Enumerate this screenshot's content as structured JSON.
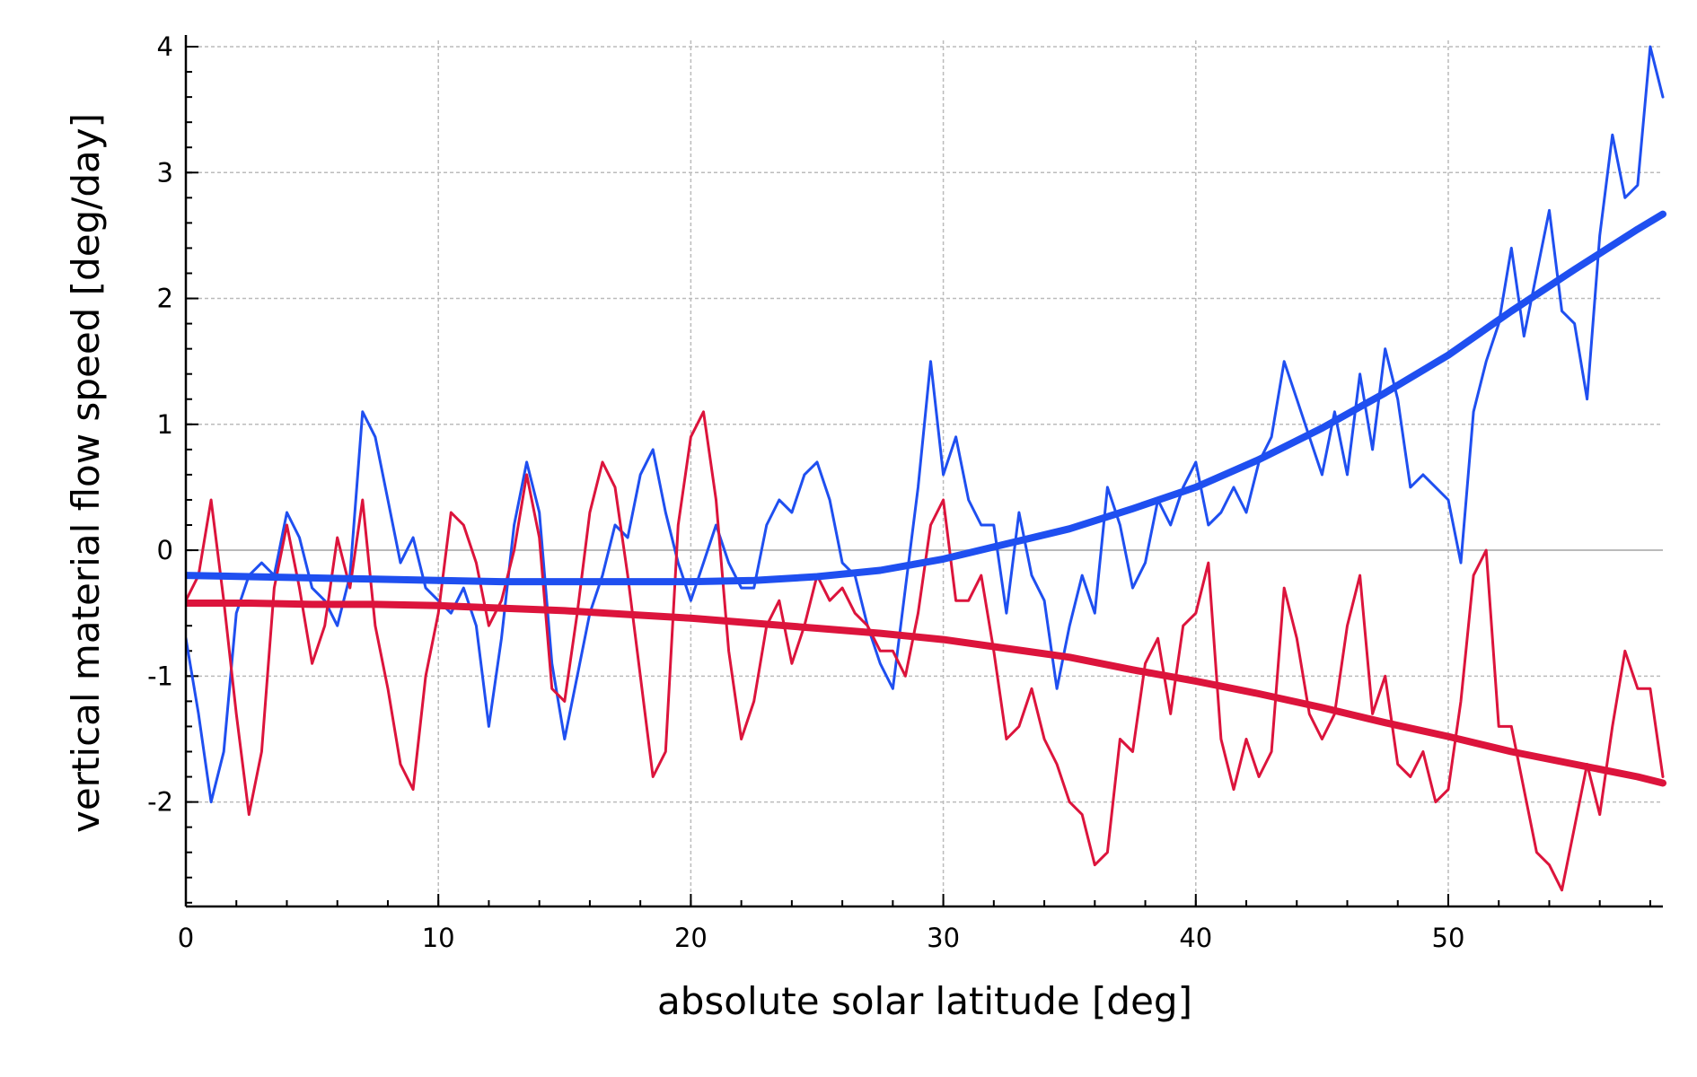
{
  "chart_data": {
    "type": "line",
    "xlabel": "absolute solar latitude [deg]",
    "ylabel": "vertical material flow speed [deg/day]",
    "xlim": [
      0,
      58.5
    ],
    "ylim": [
      -2.83,
      4.05
    ],
    "xticks": [
      0,
      10,
      20,
      30,
      40,
      50
    ],
    "yticks": [
      -2,
      -1,
      0,
      1,
      2,
      3,
      4
    ],
    "grid": true,
    "x": [
      0,
      0.5,
      1,
      1.5,
      2,
      2.5,
      3,
      3.5,
      4,
      4.5,
      5,
      5.5,
      6,
      6.5,
      7,
      7.5,
      8,
      8.5,
      9,
      9.5,
      10,
      10.5,
      11,
      11.5,
      12,
      12.5,
      13,
      13.5,
      14,
      14.5,
      15,
      15.5,
      16,
      16.5,
      17,
      17.5,
      18,
      18.5,
      19,
      19.5,
      20,
      20.5,
      21,
      21.5,
      22,
      22.5,
      23,
      23.5,
      24,
      24.5,
      25,
      25.5,
      26,
      26.5,
      27,
      27.5,
      28,
      28.5,
      29,
      29.5,
      30,
      30.5,
      31,
      31.5,
      32,
      32.5,
      33,
      33.5,
      34,
      34.5,
      35,
      35.5,
      36,
      36.5,
      37,
      37.5,
      38,
      38.5,
      39,
      39.5,
      40,
      40.5,
      41,
      41.5,
      42,
      42.5,
      43,
      43.5,
      44,
      44.5,
      45,
      45.5,
      46,
      46.5,
      47,
      47.5,
      48,
      48.5,
      49,
      49.5,
      50,
      50.5,
      51,
      51.5,
      52,
      52.5,
      53,
      53.5,
      54,
      54.5,
      55,
      55.5,
      56,
      56.5,
      57,
      57.5,
      58,
      58.5
    ],
    "series": [
      {
        "color": "#1f4ff0",
        "linewidth": 3,
        "values": [
          -0.7,
          -1.3,
          -2.0,
          -1.6,
          -0.5,
          -0.2,
          -0.1,
          -0.2,
          0.3,
          0.1,
          -0.3,
          -0.4,
          -0.6,
          -0.2,
          1.1,
          0.9,
          0.4,
          -0.1,
          0.1,
          -0.3,
          -0.4,
          -0.5,
          -0.3,
          -0.6,
          -1.4,
          -0.7,
          0.2,
          0.7,
          0.3,
          -0.9,
          -1.5,
          -1.0,
          -0.5,
          -0.2,
          0.2,
          0.1,
          0.6,
          0.8,
          0.3,
          -0.1,
          -0.4,
          -0.1,
          0.2,
          -0.1,
          -0.3,
          -0.3,
          0.2,
          0.4,
          0.3,
          0.6,
          0.7,
          0.4,
          -0.1,
          -0.2,
          -0.6,
          -0.9,
          -1.1,
          -0.3,
          0.5,
          1.5,
          0.6,
          0.9,
          0.4,
          0.2,
          0.2,
          -0.5,
          0.3,
          -0.2,
          -0.4,
          -1.1,
          -0.6,
          -0.2,
          -0.5,
          0.5,
          0.2,
          -0.3,
          -0.1,
          0.4,
          0.2,
          0.5,
          0.7,
          0.2,
          0.3,
          0.5,
          0.3,
          0.7,
          0.9,
          1.5,
          1.2,
          0.9,
          0.6,
          1.1,
          0.6,
          1.4,
          0.8,
          1.6,
          1.2,
          0.5,
          0.6,
          0.5,
          0.4,
          -0.1,
          1.1,
          1.5,
          1.8,
          2.4,
          1.7,
          2.2,
          2.7,
          1.9,
          1.8,
          1.2,
          2.5,
          3.3,
          2.8,
          2.9,
          4.0,
          3.6
        ]
      },
      {
        "color": "#dc143c",
        "linewidth": 3,
        "values": [
          -0.4,
          -0.2,
          0.4,
          -0.4,
          -1.3,
          -2.1,
          -1.6,
          -0.3,
          0.2,
          -0.3,
          -0.9,
          -0.6,
          0.1,
          -0.3,
          0.4,
          -0.6,
          -1.1,
          -1.7,
          -1.9,
          -1.0,
          -0.5,
          0.3,
          0.2,
          -0.1,
          -0.6,
          -0.4,
          0.0,
          0.6,
          0.1,
          -1.1,
          -1.2,
          -0.5,
          0.3,
          0.7,
          0.5,
          -0.2,
          -1.0,
          -1.8,
          -1.6,
          0.2,
          0.9,
          1.1,
          0.4,
          -0.8,
          -1.5,
          -1.2,
          -0.6,
          -0.4,
          -0.9,
          -0.6,
          -0.2,
          -0.4,
          -0.3,
          -0.5,
          -0.6,
          -0.8,
          -0.8,
          -1.0,
          -0.5,
          0.2,
          0.4,
          -0.4,
          -0.4,
          -0.2,
          -0.8,
          -1.5,
          -1.4,
          -1.1,
          -1.5,
          -1.7,
          -2.0,
          -2.1,
          -2.5,
          -2.4,
          -1.5,
          -1.6,
          -0.9,
          -0.7,
          -1.3,
          -0.6,
          -0.5,
          -0.1,
          -1.5,
          -1.9,
          -1.5,
          -1.8,
          -1.6,
          -0.3,
          -0.7,
          -1.3,
          -1.5,
          -1.3,
          -0.6,
          -0.2,
          -1.3,
          -1.0,
          -1.7,
          -1.8,
          -1.6,
          -2.0,
          -1.9,
          -1.2,
          -0.2,
          0.0,
          -1.4,
          -1.4,
          -1.9,
          -2.4,
          -2.5,
          -2.7,
          -2.2,
          -1.7,
          -2.1,
          -1.4,
          -0.8,
          -1.1,
          -1.1,
          -1.8
        ]
      },
      {
        "color": "#1f4ff0",
        "linewidth": 8,
        "x": [
          0,
          2.5,
          5,
          7.5,
          10,
          12.5,
          15,
          17.5,
          20,
          22.5,
          25,
          27.5,
          30,
          32.5,
          35,
          37.5,
          40,
          42.5,
          45,
          47.5,
          50,
          52.5,
          55,
          57.5,
          58.5
        ],
        "values": [
          -0.2,
          -0.21,
          -0.22,
          -0.23,
          -0.24,
          -0.25,
          -0.25,
          -0.25,
          -0.25,
          -0.24,
          -0.21,
          -0.16,
          -0.07,
          0.05,
          0.17,
          0.33,
          0.5,
          0.72,
          0.97,
          1.25,
          1.55,
          1.9,
          2.23,
          2.55,
          2.67
        ]
      },
      {
        "color": "#dc143c",
        "linewidth": 8,
        "x": [
          0,
          2.5,
          5,
          7.5,
          10,
          12.5,
          15,
          17.5,
          20,
          22.5,
          25,
          27.5,
          30,
          32.5,
          35,
          37.5,
          40,
          42.5,
          45,
          47.5,
          50,
          52.5,
          55,
          57.5,
          58.5
        ],
        "values": [
          -0.42,
          -0.42,
          -0.43,
          -0.43,
          -0.44,
          -0.46,
          -0.48,
          -0.51,
          -0.54,
          -0.58,
          -0.62,
          -0.66,
          -0.71,
          -0.78,
          -0.85,
          -0.95,
          -1.04,
          -1.14,
          -1.25,
          -1.37,
          -1.48,
          -1.6,
          -1.7,
          -1.8,
          -1.85
        ]
      }
    ]
  }
}
